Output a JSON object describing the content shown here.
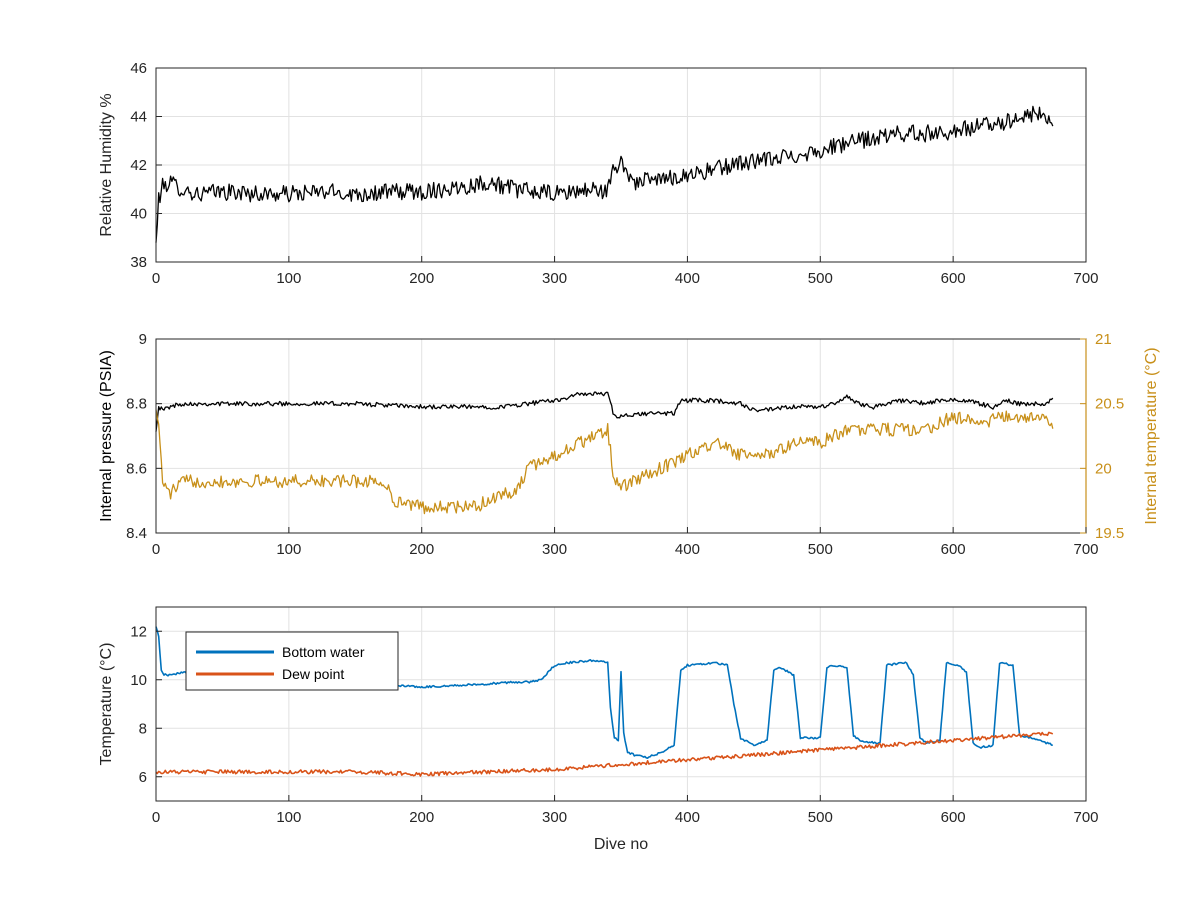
{
  "chart_data": [
    {
      "type": "line",
      "ylabel": "Relative Humidity %",
      "xlim": [
        0,
        700
      ],
      "ylim": [
        38,
        46
      ],
      "xticks": [
        "0",
        "100",
        "200",
        "300",
        "400",
        "500",
        "600",
        "700"
      ],
      "yticks": [
        "38",
        "40",
        "42",
        "44",
        "46"
      ],
      "grid": true,
      "series": [
        {
          "color": "#000000",
          "noise": 0.35,
          "x": [
            0,
            2,
            5,
            10,
            20,
            30,
            50,
            80,
            100,
            130,
            150,
            180,
            200,
            230,
            250,
            270,
            300,
            330,
            340,
            345,
            350,
            360,
            380,
            400,
            420,
            440,
            460,
            480,
            500,
            520,
            540,
            560,
            580,
            600,
            620,
            640,
            660,
            675
          ],
          "y": [
            38.7,
            40.6,
            41.1,
            41.3,
            41.0,
            40.8,
            40.9,
            40.8,
            40.8,
            40.9,
            40.8,
            40.9,
            40.9,
            41.1,
            41.3,
            41.0,
            40.8,
            41.0,
            40.9,
            41.9,
            42.1,
            41.3,
            41.4,
            41.6,
            41.8,
            42.1,
            42.2,
            42.4,
            42.6,
            42.9,
            43.1,
            43.3,
            43.3,
            43.4,
            43.6,
            43.8,
            44.1,
            43.9
          ]
        }
      ]
    },
    {
      "type": "line",
      "xlabel": "",
      "ylabel": "Internal pressure (PSIA)",
      "ylabel_right": "Internal temperature (°C)",
      "xlim": [
        0,
        700
      ],
      "ylim": [
        8.4,
        9
      ],
      "ylim_right": [
        19.5,
        21
      ],
      "xticks": [
        "0",
        "100",
        "200",
        "300",
        "400",
        "500",
        "600",
        "700"
      ],
      "yticks": [
        "8.4",
        "8.6",
        "8.8",
        "9"
      ],
      "yticks_right": [
        "19.5",
        "20",
        "20.5",
        "21"
      ],
      "right_axis_color": "#c8901a",
      "grid": true,
      "series": [
        {
          "color": "#000000",
          "axis": "left",
          "noise": 0.007,
          "x": [
            0,
            2,
            5,
            10,
            20,
            50,
            100,
            150,
            200,
            240,
            260,
            280,
            300,
            320,
            340,
            345,
            350,
            370,
            390,
            395,
            420,
            440,
            450,
            460,
            480,
            500,
            510,
            520,
            530,
            540,
            560,
            580,
            590,
            610,
            630,
            640,
            650,
            670,
            675
          ],
          "y": [
            8.72,
            8.79,
            8.78,
            8.79,
            8.8,
            8.8,
            8.8,
            8.8,
            8.79,
            8.79,
            8.79,
            8.8,
            8.81,
            8.83,
            8.83,
            8.76,
            8.76,
            8.77,
            8.77,
            8.81,
            8.81,
            8.8,
            8.78,
            8.78,
            8.79,
            8.79,
            8.8,
            8.82,
            8.8,
            8.79,
            8.81,
            8.8,
            8.81,
            8.81,
            8.79,
            8.81,
            8.8,
            8.8,
            8.82
          ]
        },
        {
          "color": "#c8901a",
          "axis": "right",
          "noise": 0.05,
          "x": [
            0,
            3,
            5,
            10,
            20,
            30,
            50,
            80,
            100,
            130,
            150,
            170,
            180,
            200,
            220,
            240,
            260,
            270,
            280,
            300,
            320,
            340,
            345,
            350,
            360,
            380,
            400,
            420,
            440,
            460,
            480,
            500,
            520,
            540,
            560,
            580,
            600,
            620,
            640,
            660,
            675
          ],
          "y": [
            20.5,
            20.2,
            19.9,
            19.8,
            19.9,
            19.9,
            19.9,
            19.9,
            19.9,
            19.9,
            19.9,
            19.9,
            19.75,
            19.7,
            19.7,
            19.7,
            19.8,
            19.8,
            20.0,
            20.1,
            20.2,
            20.3,
            19.9,
            19.85,
            19.9,
            20.0,
            20.1,
            20.2,
            20.1,
            20.1,
            20.2,
            20.2,
            20.3,
            20.3,
            20.3,
            20.3,
            20.4,
            20.35,
            20.4,
            20.4,
            20.35
          ]
        }
      ]
    },
    {
      "type": "line",
      "xlabel": "Dive no",
      "ylabel": "Temperature (°C)",
      "xlim": [
        0,
        700
      ],
      "ylim": [
        5,
        13
      ],
      "xticks": [
        "0",
        "100",
        "200",
        "300",
        "400",
        "500",
        "600",
        "700"
      ],
      "yticks": [
        "6",
        "8",
        "10",
        "12"
      ],
      "grid": true,
      "legend": "top-left",
      "series": [
        {
          "name": "Bottom water",
          "color": "#0072bd",
          "noise": 0.04,
          "x": [
            0,
            2,
            4,
            6,
            10,
            20,
            40,
            60,
            80,
            100,
            150,
            200,
            240,
            270,
            280,
            290,
            300,
            310,
            330,
            340,
            342,
            345,
            348,
            350,
            352,
            355,
            360,
            370,
            380,
            390,
            395,
            400,
            420,
            430,
            435,
            440,
            450,
            460,
            465,
            470,
            480,
            485,
            490,
            500,
            505,
            510,
            520,
            525,
            530,
            540,
            545,
            550,
            565,
            570,
            575,
            580,
            590,
            595,
            605,
            610,
            615,
            620,
            630,
            635,
            645,
            650,
            660,
            670,
            675
          ],
          "y": [
            12.2,
            11.8,
            10.4,
            10.2,
            10.2,
            10.3,
            10.2,
            10.3,
            10.1,
            10.0,
            9.9,
            9.7,
            9.8,
            9.9,
            9.9,
            10.0,
            10.6,
            10.7,
            10.8,
            10.7,
            8.9,
            7.6,
            7.5,
            10.3,
            7.8,
            7.0,
            6.9,
            6.8,
            7.0,
            7.3,
            10.4,
            10.6,
            10.7,
            10.6,
            9.0,
            7.6,
            7.3,
            7.5,
            10.4,
            10.5,
            10.2,
            7.6,
            7.6,
            7.6,
            10.5,
            10.6,
            10.5,
            7.7,
            7.5,
            7.4,
            7.4,
            10.6,
            10.7,
            10.2,
            7.6,
            7.4,
            7.5,
            10.7,
            10.6,
            10.3,
            7.4,
            7.2,
            7.3,
            10.7,
            10.6,
            7.7,
            7.6,
            7.4,
            7.3
          ]
        },
        {
          "name": "Dew point",
          "color": "#d95319",
          "noise": 0.08,
          "x": [
            0,
            50,
            100,
            150,
            200,
            250,
            300,
            350,
            400,
            450,
            500,
            550,
            600,
            650,
            675
          ],
          "y": [
            6.2,
            6.2,
            6.2,
            6.2,
            6.1,
            6.2,
            6.3,
            6.5,
            6.7,
            6.9,
            7.1,
            7.3,
            7.5,
            7.7,
            7.8
          ]
        }
      ]
    }
  ]
}
